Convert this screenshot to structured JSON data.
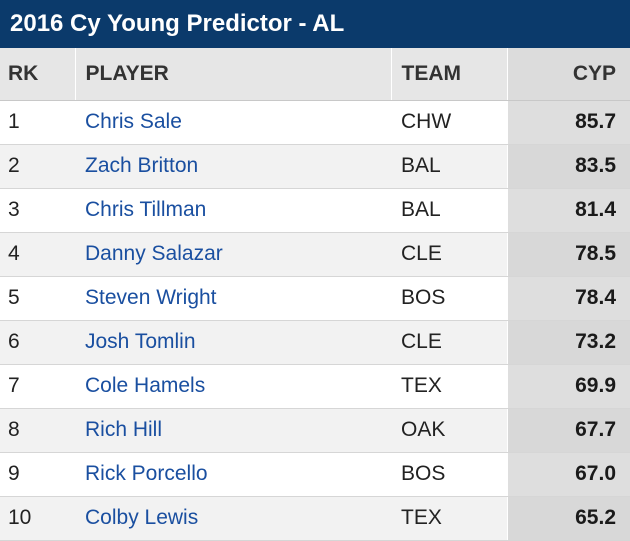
{
  "title": "2016 Cy Young Predictor - AL",
  "columns": {
    "rk": "RK",
    "player": "PLAYER",
    "team": "TEAM",
    "cyp": "CYP"
  },
  "rows": [
    {
      "rk": "1",
      "player": "Chris Sale",
      "team": "CHW",
      "cyp": "85.7"
    },
    {
      "rk": "2",
      "player": "Zach Britton",
      "team": "BAL",
      "cyp": "83.5"
    },
    {
      "rk": "3",
      "player": "Chris Tillman",
      "team": "BAL",
      "cyp": "81.4"
    },
    {
      "rk": "4",
      "player": "Danny Salazar",
      "team": "CLE",
      "cyp": "78.5"
    },
    {
      "rk": "5",
      "player": "Steven Wright",
      "team": "BOS",
      "cyp": "78.4"
    },
    {
      "rk": "6",
      "player": "Josh Tomlin",
      "team": "CLE",
      "cyp": "73.2"
    },
    {
      "rk": "7",
      "player": "Cole Hamels",
      "team": "TEX",
      "cyp": "69.9"
    },
    {
      "rk": "8",
      "player": "Rich Hill",
      "team": "OAK",
      "cyp": "67.7"
    },
    {
      "rk": "9",
      "player": "Rick Porcello",
      "team": "BOS",
      "cyp": "67.0"
    },
    {
      "rk": "10",
      "player": "Colby Lewis",
      "team": "TEX",
      "cyp": "65.2"
    }
  ],
  "colors": {
    "header_bg": "#0b3a6b",
    "link": "#1a4fa0"
  }
}
